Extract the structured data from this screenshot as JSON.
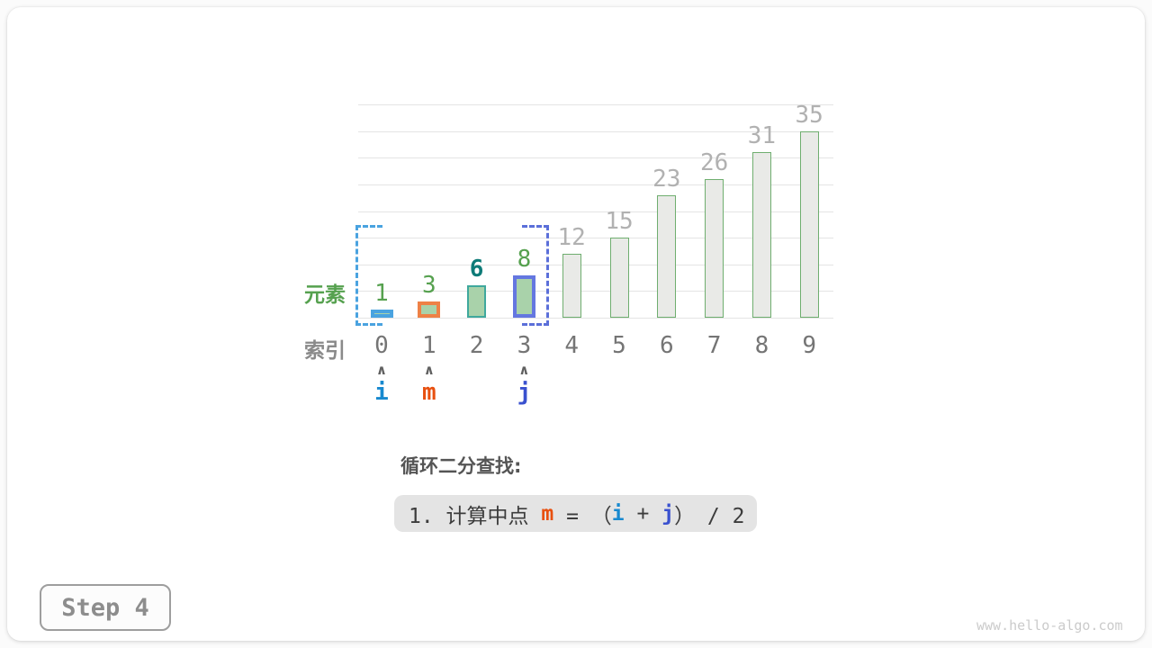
{
  "chart_data": {
    "type": "bar",
    "title": "",
    "xlabel": "索引",
    "ylabel": "元素",
    "categories": [
      0,
      1,
      2,
      3,
      4,
      5,
      6,
      7,
      8,
      9
    ],
    "values": [
      1,
      3,
      6,
      8,
      12,
      15,
      23,
      26,
      31,
      35
    ],
    "ylim": [
      0,
      40
    ],
    "grid_step": 5,
    "grid": true,
    "legend": "none",
    "bar_variants": [
      "pointer-i",
      "pointer-m",
      "mid-green",
      "pointer-j",
      "plain",
      "plain",
      "plain",
      "plain",
      "plain",
      "plain"
    ],
    "value_label_styles": [
      "green",
      "green",
      "teal-bold",
      "green",
      "gray",
      "gray",
      "gray",
      "gray",
      "gray",
      "gray"
    ]
  },
  "axis_labels": {
    "element": "元素",
    "index": "索引"
  },
  "pointers": [
    {
      "label": "i",
      "index": 0,
      "color": "#1889cf"
    },
    {
      "label": "m",
      "index": 1,
      "color": "#e8500f"
    },
    {
      "label": "j",
      "index": 3,
      "color": "#3a51cf"
    }
  ],
  "caret_glyph": "∧",
  "range_bracket": {
    "start_index": 0,
    "end_index": 3,
    "left_color": "#4aa3e0",
    "right_color": "#5b6fd9"
  },
  "caption": {
    "title": "循环二分查找:"
  },
  "formula": {
    "segments": [
      {
        "text": "1. 计算中点 ",
        "style": "plain"
      },
      {
        "text": "m",
        "color": "#e8500f"
      },
      {
        "text": " = （",
        "style": "plain"
      },
      {
        "text": "i",
        "color": "#1889cf"
      },
      {
        "text": " + ",
        "style": "plain"
      },
      {
        "text": "j",
        "color": "#3a51cf"
      },
      {
        "text": "） / 2",
        "style": "plain"
      }
    ]
  },
  "step_badge": {
    "label": "Step 4"
  },
  "watermark": {
    "text": "www.hello-algo.com"
  },
  "colors": {
    "bar_green_fill": "#a9d2aa",
    "bar_gray_fill": "#e9eae7",
    "bar_plain_border": "#6fae6f",
    "bar_mid_border": "#3fa89d",
    "bar_i_border": "#4aa3e0",
    "bar_m_border": "#ee8146",
    "bar_j_border": "#6477e0",
    "green_text": "#56a14f",
    "teal_text": "#0e7b78",
    "gray_value_text": "#b1b1b1",
    "index_text": "#757575",
    "gridline": "#e4e4e4"
  }
}
